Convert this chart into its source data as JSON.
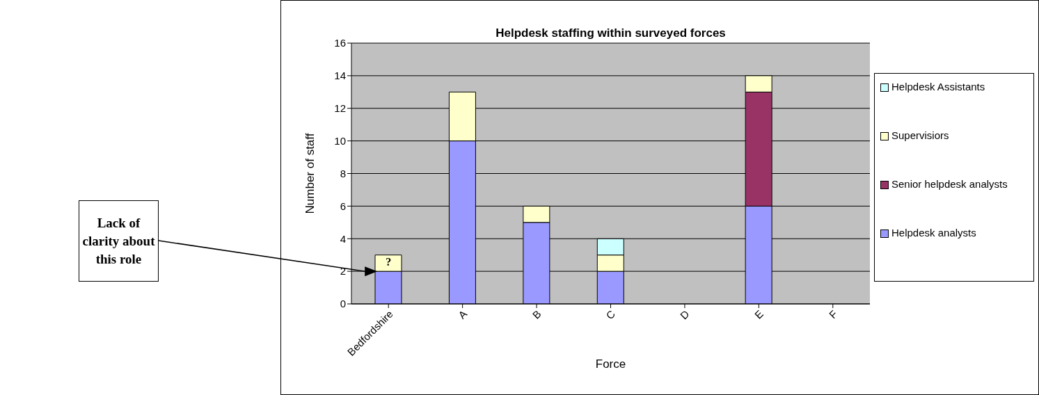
{
  "chart_data": {
    "type": "bar",
    "title": "Helpdesk staffing within surveyed forces",
    "xlabel": "Force",
    "ylabel": "Number of staff",
    "categories": [
      "Bedfordshire",
      "A",
      "B",
      "C",
      "D",
      "E",
      "F"
    ],
    "stacked": true,
    "series": [
      {
        "name": "Helpdesk analysts",
        "color": "#9999ff",
        "values": [
          2,
          10,
          5,
          2,
          0,
          6,
          0
        ]
      },
      {
        "name": "Senior helpdesk analysts",
        "color": "#993366",
        "values": [
          0,
          0,
          0,
          0,
          0,
          7,
          0
        ]
      },
      {
        "name": "Supervisiors",
        "color": "#ffffcc",
        "values": [
          1,
          3,
          1,
          1,
          0,
          1,
          0
        ]
      },
      {
        "name": "Helpdesk Assistants",
        "color": "#ccffff",
        "values": [
          0,
          0,
          0,
          1,
          0,
          0,
          0
        ]
      }
    ],
    "ylim": [
      0,
      16
    ],
    "yticks": [
      0,
      2,
      4,
      6,
      8,
      10,
      12,
      14,
      16
    ],
    "grid": "y",
    "legend": "right",
    "annotations": [
      "Lack of clarity about this role",
      "?"
    ]
  }
}
